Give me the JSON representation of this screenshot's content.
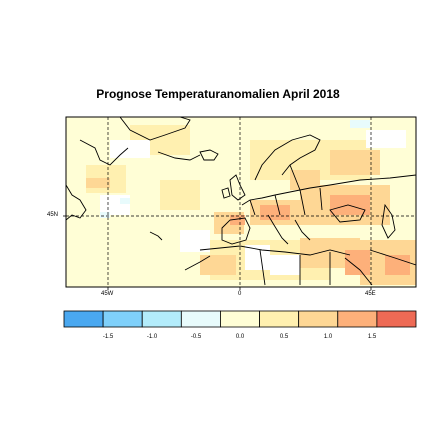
{
  "title": "Prognose Temperaturanomalien April 2018",
  "axes": {
    "x_ticks": [
      "45W",
      "0",
      "45E"
    ],
    "y_ticks": [
      "45N"
    ]
  },
  "colorbar": {
    "labels": [
      "-1.5",
      "-1.0",
      "-0.5",
      "0.0",
      "0.5",
      "1.0",
      "1.5"
    ],
    "colors": [
      "#4aa8f0",
      "#7fd0fa",
      "#b3ecfb",
      "#e8fbfc",
      "#fffed6",
      "#fff0b0",
      "#fed795",
      "#fdb07a",
      "#ee6a55"
    ]
  },
  "map": {
    "type": "anomaly-map",
    "region": "North Atlantic / Europe",
    "grid_lines": "dashed"
  }
}
